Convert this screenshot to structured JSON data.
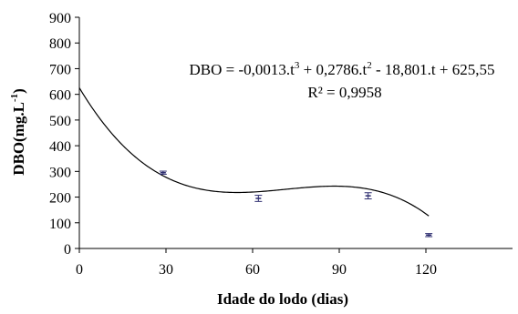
{
  "chart_data": {
    "type": "scatter",
    "xlabel": "Idade do lodo (dias)",
    "ylabel": "DBO(mg.L",
    "ylabel_exp": "-1",
    "ylabel_close": ")",
    "xlim": [
      0,
      150
    ],
    "ylim": [
      0,
      900
    ],
    "xticks": [
      0,
      30,
      60,
      90,
      120
    ],
    "yticks": [
      0,
      100,
      200,
      300,
      400,
      500,
      600,
      700,
      800,
      900
    ],
    "grid": false,
    "legend": "none",
    "points": [
      {
        "x": 29,
        "y": 295,
        "err": 6
      },
      {
        "x": 62,
        "y": 195,
        "err": 12
      },
      {
        "x": 100,
        "y": 205,
        "err": 12
      },
      {
        "x": 121,
        "y": 52,
        "err": 6
      }
    ],
    "trendline": {
      "type": "polynomial-3",
      "coefficients": {
        "a3": -0.0013,
        "a2": 0.2786,
        "a1": -18.801,
        "a0": 625.55
      },
      "x_range": [
        0,
        121
      ]
    },
    "annotation": {
      "eq_prefix": "DBO = -0,0013.t",
      "eq_exp1": "3",
      "eq_mid1": " + 0,2786.t",
      "eq_exp2": "2",
      "eq_suffix": " - 18,801.t + 625,55",
      "r2": "R² = 0,9958"
    },
    "colors": {
      "line": "#000000",
      "marker": "#2b2b6e"
    }
  }
}
